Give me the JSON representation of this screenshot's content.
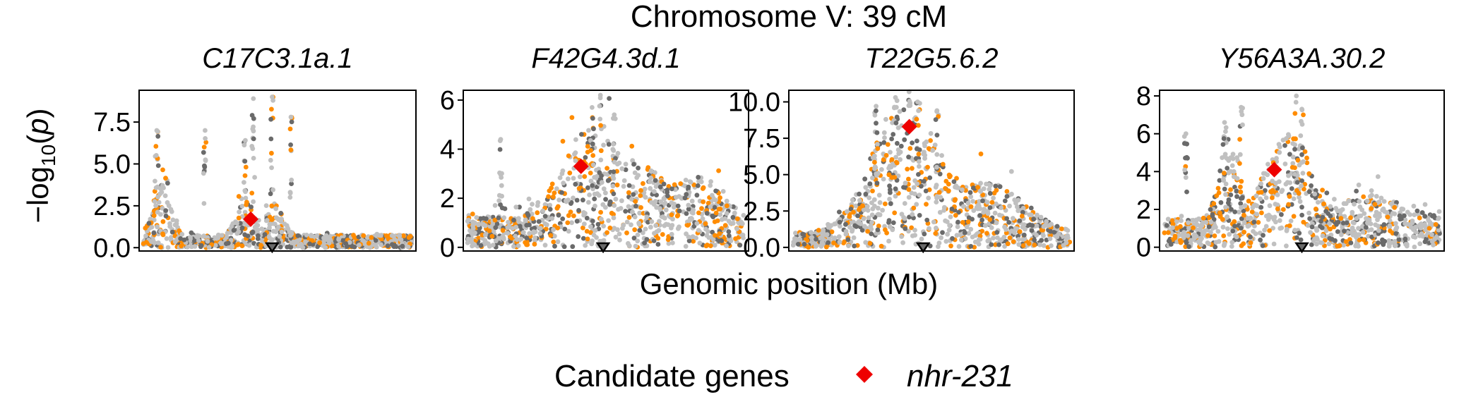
{
  "chart_data": {
    "type": "scatter",
    "title": "Chromosome V: 39 cM",
    "xlabel": "Genomic position (Mb)",
    "ylabel_prefix": "−log",
    "ylabel_sub": "10",
    "ylabel_open": "(",
    "ylabel_var": "p",
    "ylabel_close": ")",
    "legend": {
      "title": "Candidate genes",
      "entries": [
        {
          "name": "nhr-231",
          "color": "#ee0000",
          "shape": "diamond"
        }
      ]
    },
    "colors": {
      "background_points": "#c0c0c0",
      "dark_points": "#6a6a6a",
      "highlight_points": "#ff8c00",
      "candidate": "#ee0000",
      "qtl_marker_stroke": "#000000"
    },
    "panels": [
      {
        "title": "C17C3.1a.1",
        "ylim": [
          -0.2,
          9.4
        ],
        "yticks": [
          0,
          2.5,
          5,
          7.5
        ],
        "ytick_labels": [
          "0.0",
          "2.5",
          "5.0",
          "7.5"
        ],
        "candidate": {
          "x": 0.4,
          "y": 1.7
        },
        "qtl_x": 0.48,
        "profile": {
          "base": 0.6,
          "peaks": [
            [
              0.07,
              3.2,
              0.03
            ],
            [
              0.38,
              1.8,
              0.03
            ],
            [
              0.49,
              1.5,
              0.03
            ]
          ],
          "spikes": [
            [
              0.05,
              7.0
            ],
            [
              0.23,
              7.0
            ],
            [
              0.38,
              6.4
            ],
            [
              0.41,
              8.9
            ],
            [
              0.48,
              9.0
            ],
            [
              0.55,
              7.8
            ]
          ]
        },
        "seed": 11
      },
      {
        "title": "F42G4.3d.1",
        "ylim": [
          -0.15,
          6.4
        ],
        "yticks": [
          0,
          2,
          4,
          6
        ],
        "ytick_labels": [
          "0",
          "2",
          "4",
          "6"
        ],
        "candidate": {
          "x": 0.41,
          "y": 3.3
        },
        "qtl_x": 0.49,
        "profile": {
          "base": 1.0,
          "peaks": [
            [
              0.42,
              2.6,
              0.09
            ],
            [
              0.62,
              1.6,
              0.1
            ],
            [
              0.85,
              1.2,
              0.07
            ]
          ],
          "spikes": [
            [
              0.12,
              4.4
            ],
            [
              0.45,
              5.7
            ],
            [
              0.48,
              6.2
            ],
            [
              0.53,
              5.4
            ]
          ]
        },
        "seed": 23
      },
      {
        "title": "T22G5.6.2",
        "ylim": [
          -0.25,
          10.8
        ],
        "yticks": [
          0,
          2.5,
          5,
          7.5,
          10
        ],
        "ytick_labels": [
          "0.0",
          "2.5",
          "5.0",
          "7.5",
          "10.0"
        ],
        "candidate": {
          "x": 0.42,
          "y": 8.3
        },
        "qtl_x": 0.47,
        "profile": {
          "base": 0.8,
          "peaks": [
            [
              0.4,
              7.5,
              0.11
            ],
            [
              0.72,
              2.6,
              0.12
            ]
          ],
          "spikes": [
            [
              0.3,
              9.7
            ],
            [
              0.37,
              10.3
            ],
            [
              0.45,
              10.0
            ],
            [
              0.52,
              9.4
            ]
          ]
        },
        "seed": 37
      },
      {
        "title": "Y56A3A.30.2",
        "ylim": [
          -0.2,
          8.3
        ],
        "yticks": [
          0,
          2,
          4,
          6,
          8
        ],
        "ytick_labels": [
          "0",
          "2",
          "4",
          "6",
          "8"
        ],
        "candidate": {
          "x": 0.4,
          "y": 4.1
        },
        "qtl_x": 0.5,
        "profile": {
          "base": 1.2,
          "peaks": [
            [
              0.23,
              3.4,
              0.03
            ],
            [
              0.4,
              2.4,
              0.06
            ],
            [
              0.49,
              2.6,
              0.05
            ],
            [
              0.75,
              1.0,
              0.12
            ]
          ],
          "spikes": [
            [
              0.08,
              6.0
            ],
            [
              0.22,
              6.6
            ],
            [
              0.28,
              7.4
            ],
            [
              0.48,
              8.0
            ],
            [
              0.5,
              7.3
            ]
          ]
        },
        "seed": 53
      }
    ]
  }
}
